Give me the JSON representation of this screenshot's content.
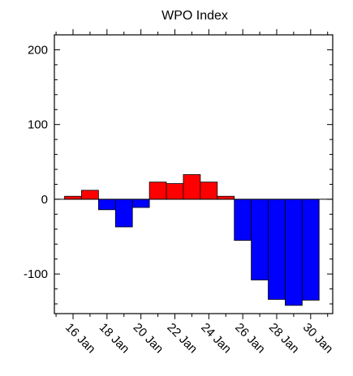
{
  "chart_data": {
    "type": "bar",
    "title": "WPO Index",
    "xlabel": "",
    "ylabel": "",
    "ylim": [
      -153,
      220
    ],
    "yticks": [
      200,
      100,
      0,
      -100
    ],
    "yticks_labels": [
      "200",
      "100",
      "0",
      "-100"
    ],
    "xticks": [
      {
        "day": 16,
        "label": "16 Jan"
      },
      {
        "day": 18,
        "label": "18 Jan"
      },
      {
        "day": 20,
        "label": "20 Jan"
      },
      {
        "day": 22,
        "label": "22 Jan"
      },
      {
        "day": 24,
        "label": "24 Jan"
      },
      {
        "day": 26,
        "label": "26 Jan"
      },
      {
        "day": 28,
        "label": "28 Jan"
      },
      {
        "day": 30,
        "label": "30 Jan"
      }
    ],
    "xlim_days": [
      14.9,
      31.3
    ],
    "categories": [
      "16 Jan",
      "17 Jan",
      "18 Jan",
      "19 Jan",
      "20 Jan",
      "21 Jan",
      "22 Jan",
      "23 Jan",
      "24 Jan",
      "25 Jan",
      "26 Jan",
      "27 Jan",
      "28 Jan",
      "29 Jan",
      "30 Jan"
    ],
    "category_days": [
      16,
      17,
      18,
      19,
      20,
      21,
      22,
      23,
      24,
      25,
      26,
      27,
      28,
      29,
      30
    ],
    "values": [
      4,
      12,
      -14,
      -37,
      -11,
      23,
      21,
      33,
      23,
      4,
      -55,
      -108,
      -134,
      -142,
      -135
    ],
    "positive_color": "#ff0000",
    "negative_color": "#0000ff",
    "zero_line": true,
    "grid": false
  }
}
